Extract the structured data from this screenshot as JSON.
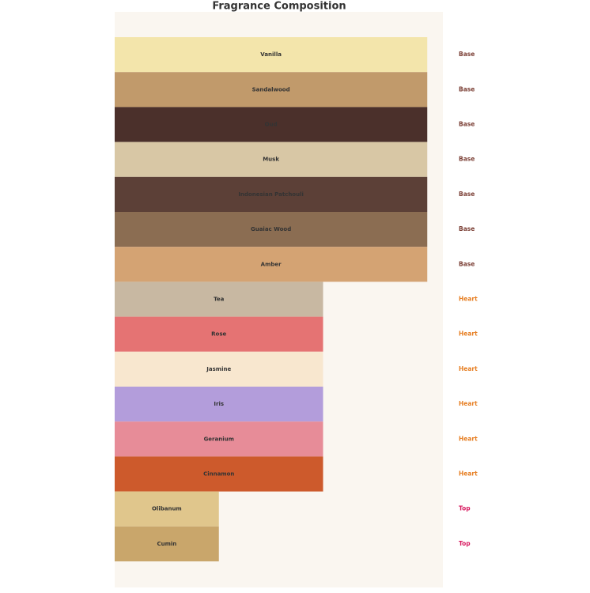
{
  "chart_data": {
    "type": "bar",
    "orientation": "horizontal",
    "title": "Fragrance Composition",
    "categories": [
      "Vanilla",
      "Sandalwood",
      "Oud",
      "Musk",
      "Indonesian Patchouli",
      "Guaiac Wood",
      "Amber",
      "Tea",
      "Rose",
      "Jasmine",
      "Iris",
      "Geranium",
      "Cinnamon",
      "Olibanum",
      "Cumin"
    ],
    "values": [
      3,
      3,
      3,
      3,
      3,
      3,
      3,
      2,
      2,
      2,
      2,
      2,
      2,
      1,
      1
    ],
    "colors": [
      "#f3e5ab",
      "#c19a6b",
      "#4b302b",
      "#d8c7a5",
      "#5c4037",
      "#8b6d52",
      "#d4a373",
      "#c8b8a2",
      "#e57373",
      "#f8e7cf",
      "#b39ddb",
      "#e78c98",
      "#cd5a2c",
      "#e0c68c",
      "#c9a66b"
    ],
    "groups": [
      "Base",
      "Base",
      "Base",
      "Base",
      "Base",
      "Base",
      "Base",
      "Heart",
      "Heart",
      "Heart",
      "Heart",
      "Heart",
      "Heart",
      "Top",
      "Top"
    ],
    "group_colors": {
      "Base": "#7b3f35",
      "Heart": "#e67e22",
      "Top": "#d81b60"
    },
    "background": "#faf6f0",
    "xlim": [
      0,
      3.15
    ]
  }
}
